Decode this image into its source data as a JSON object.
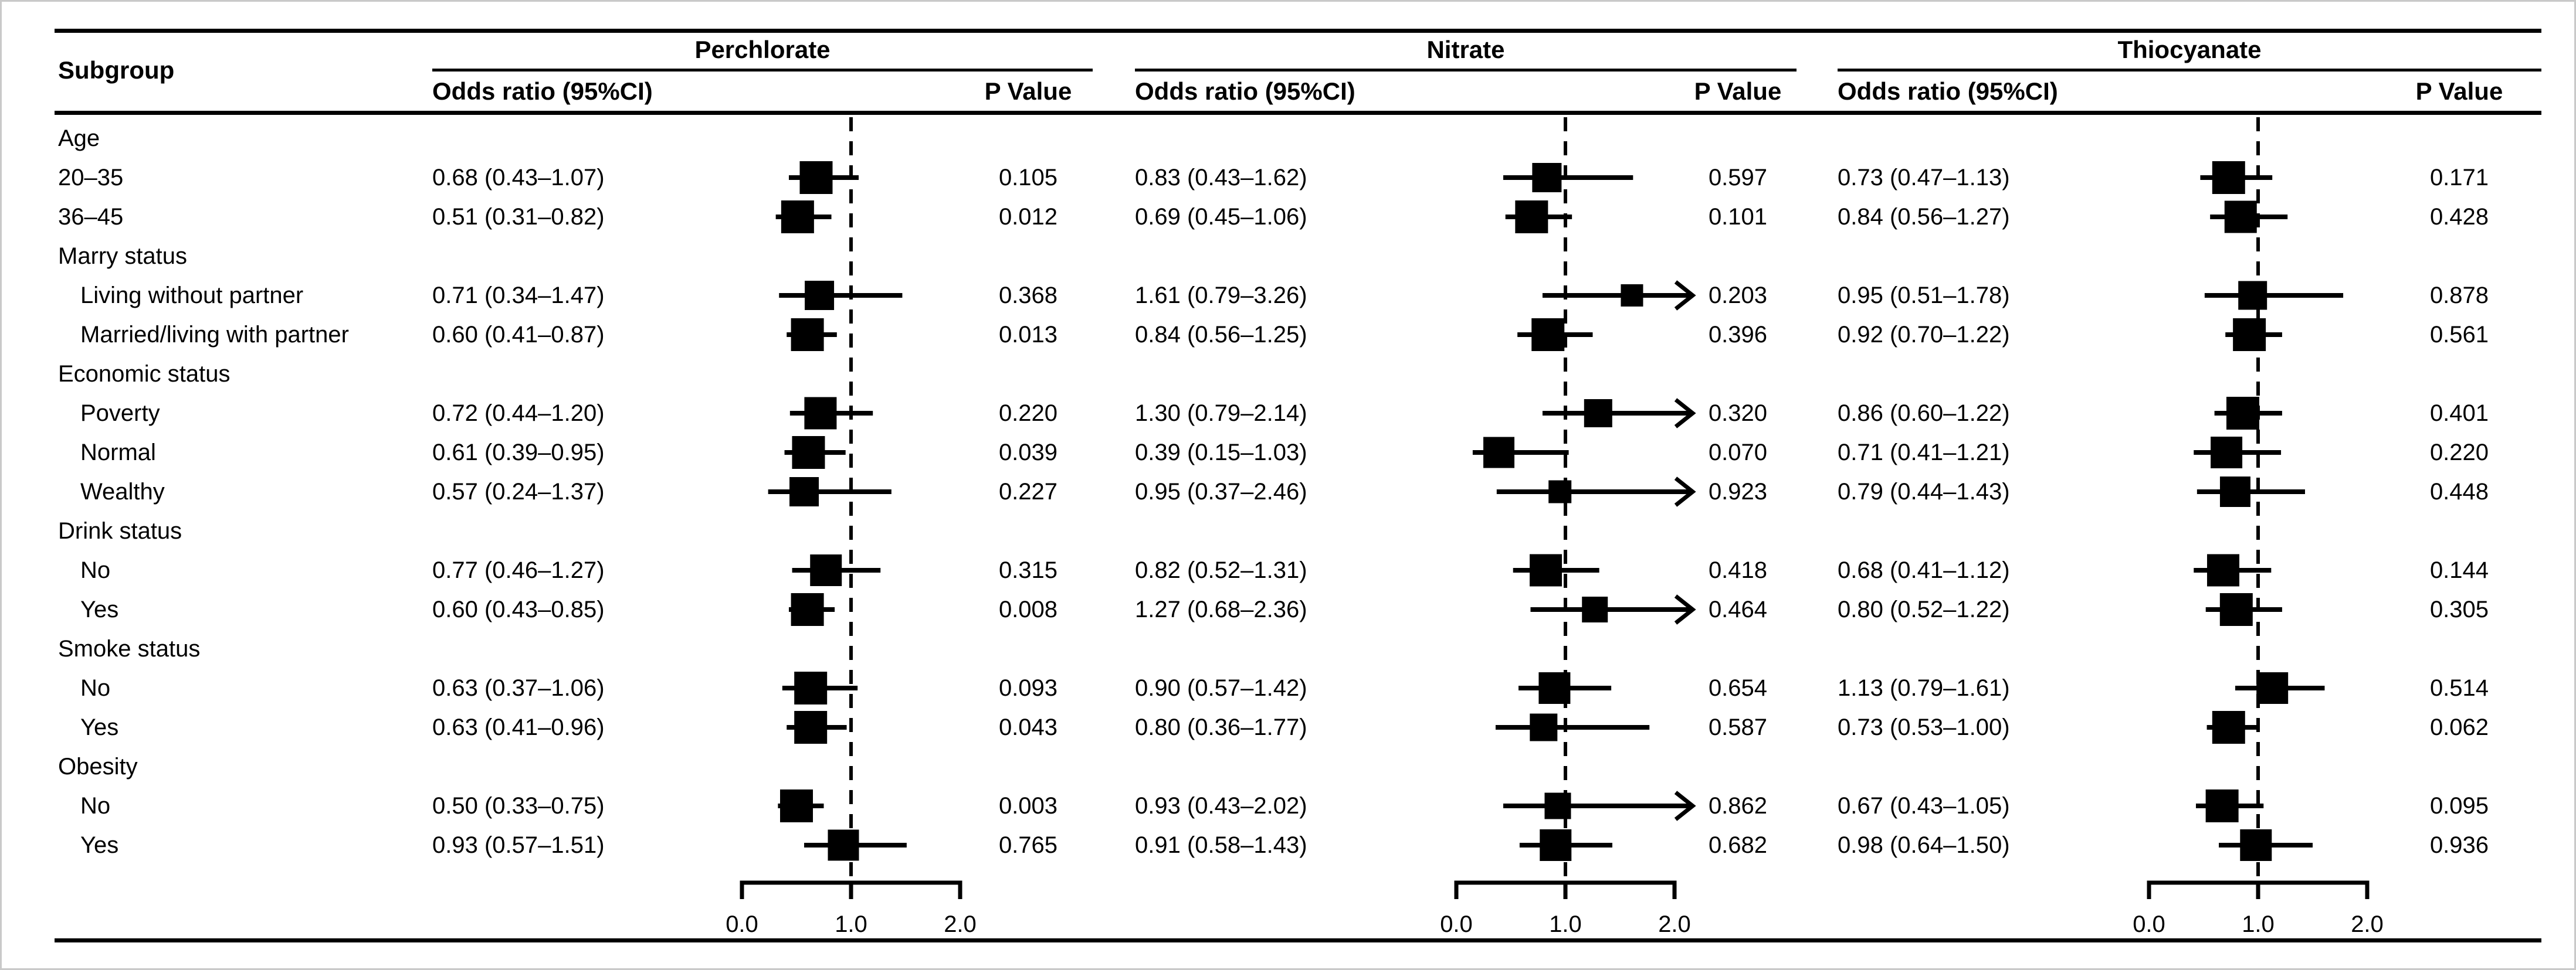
{
  "ink_color": "#000000",
  "background_color": "#ffffff",
  "border_color": "#c9c9c9",
  "chart_data": {
    "type": "forest",
    "subgroup_header": "Subgroup",
    "axis": {
      "min": 0,
      "max": 2,
      "refline": 1,
      "refline_style": "dashed",
      "ticks": [
        {
          "value": 0,
          "label": "0.0"
        },
        {
          "value": 1,
          "label": "1.0"
        },
        {
          "value": 2,
          "label": "2.0"
        }
      ]
    },
    "panels": [
      {
        "name": "Perchlorate",
        "or_header": "Odds ratio (95%CI)",
        "p_header": "P Value"
      },
      {
        "name": "Nitrate",
        "or_header": "Odds ratio (95%CI)",
        "p_header": "P Value"
      },
      {
        "name": "Thiocyanate",
        "or_header": "Odds ratio (95%CI)",
        "p_header": "P Value"
      }
    ],
    "rows": [
      {
        "type": "category",
        "label": "Age",
        "indent": false
      },
      {
        "type": "item",
        "label": "20–35",
        "indent": false,
        "cells": [
          {
            "or_text": "0.68 (0.43–1.07)",
            "or": 0.68,
            "lo": 0.43,
            "hi": 1.07,
            "p": "0.105"
          },
          {
            "or_text": "0.83 (0.43–1.62)",
            "or": 0.83,
            "lo": 0.43,
            "hi": 1.62,
            "p": "0.597"
          },
          {
            "or_text": "0.73 (0.47–1.13)",
            "or": 0.73,
            "lo": 0.47,
            "hi": 1.13,
            "p": "0.171"
          }
        ]
      },
      {
        "type": "item",
        "label": "36–45",
        "indent": false,
        "cells": [
          {
            "or_text": "0.51 (0.31–0.82)",
            "or": 0.51,
            "lo": 0.31,
            "hi": 0.82,
            "p": "0.012"
          },
          {
            "or_text": "0.69 (0.45–1.06)",
            "or": 0.69,
            "lo": 0.45,
            "hi": 1.06,
            "p": "0.101"
          },
          {
            "or_text": "0.84 (0.56–1.27)",
            "or": 0.84,
            "lo": 0.56,
            "hi": 1.27,
            "p": "0.428"
          }
        ]
      },
      {
        "type": "category",
        "label": "Marry status",
        "indent": false
      },
      {
        "type": "item",
        "label": "Living without partner",
        "indent": true,
        "cells": [
          {
            "or_text": "0.71 (0.34–1.47)",
            "or": 0.71,
            "lo": 0.34,
            "hi": 1.47,
            "p": "0.368"
          },
          {
            "or_text": "1.61 (0.79–3.26)",
            "or": 1.61,
            "lo": 0.79,
            "hi": 3.26,
            "p": "0.203"
          },
          {
            "or_text": "0.95 (0.51–1.78)",
            "or": 0.95,
            "lo": 0.51,
            "hi": 1.78,
            "p": "0.878"
          }
        ]
      },
      {
        "type": "item",
        "label": "Married/living with partner",
        "indent": true,
        "cells": [
          {
            "or_text": "0.60 (0.41–0.87)",
            "or": 0.6,
            "lo": 0.41,
            "hi": 0.87,
            "p": "0.013"
          },
          {
            "or_text": "0.84 (0.56–1.25)",
            "or": 0.84,
            "lo": 0.56,
            "hi": 1.25,
            "p": "0.396"
          },
          {
            "or_text": "0.92 (0.70–1.22)",
            "or": 0.92,
            "lo": 0.7,
            "hi": 1.22,
            "p": "0.561"
          }
        ]
      },
      {
        "type": "category",
        "label": "Economic status",
        "indent": false
      },
      {
        "type": "item",
        "label": "Poverty",
        "indent": true,
        "cells": [
          {
            "or_text": "0.72 (0.44–1.20)",
            "or": 0.72,
            "lo": 0.44,
            "hi": 1.2,
            "p": "0.220"
          },
          {
            "or_text": "1.30 (0.79–2.14)",
            "or": 1.3,
            "lo": 0.79,
            "hi": 2.14,
            "p": "0.320"
          },
          {
            "or_text": "0.86 (0.60–1.22)",
            "or": 0.86,
            "lo": 0.6,
            "hi": 1.22,
            "p": "0.401"
          }
        ]
      },
      {
        "type": "item",
        "label": "Normal",
        "indent": true,
        "cells": [
          {
            "or_text": "0.61 (0.39–0.95)",
            "or": 0.61,
            "lo": 0.39,
            "hi": 0.95,
            "p": "0.039"
          },
          {
            "or_text": "0.39 (0.15–1.03)",
            "or": 0.39,
            "lo": 0.15,
            "hi": 1.03,
            "p": "0.070"
          },
          {
            "or_text": "0.71 (0.41–1.21)",
            "or": 0.71,
            "lo": 0.41,
            "hi": 1.21,
            "p": "0.220"
          }
        ]
      },
      {
        "type": "item",
        "label": "Wealthy",
        "indent": true,
        "cells": [
          {
            "or_text": "0.57 (0.24–1.37)",
            "or": 0.57,
            "lo": 0.24,
            "hi": 1.37,
            "p": "0.227"
          },
          {
            "or_text": "0.95 (0.37–2.46)",
            "or": 0.95,
            "lo": 0.37,
            "hi": 2.46,
            "p": "0.923"
          },
          {
            "or_text": "0.79 (0.44–1.43)",
            "or": 0.79,
            "lo": 0.44,
            "hi": 1.43,
            "p": "0.448"
          }
        ]
      },
      {
        "type": "category",
        "label": "Drink status",
        "indent": false
      },
      {
        "type": "item",
        "label": "No",
        "indent": true,
        "cells": [
          {
            "or_text": "0.77 (0.46–1.27)",
            "or": 0.77,
            "lo": 0.46,
            "hi": 1.27,
            "p": "0.315"
          },
          {
            "or_text": "0.82 (0.52–1.31)",
            "or": 0.82,
            "lo": 0.52,
            "hi": 1.31,
            "p": "0.418"
          },
          {
            "or_text": "0.68 (0.41–1.12)",
            "or": 0.68,
            "lo": 0.41,
            "hi": 1.12,
            "p": "0.144"
          }
        ]
      },
      {
        "type": "item",
        "label": "Yes",
        "indent": true,
        "cells": [
          {
            "or_text": "0.60 (0.43–0.85)",
            "or": 0.6,
            "lo": 0.43,
            "hi": 0.85,
            "p": "0.008"
          },
          {
            "or_text": "1.27 (0.68–2.36)",
            "or": 1.27,
            "lo": 0.68,
            "hi": 2.36,
            "p": "0.464"
          },
          {
            "or_text": "0.80 (0.52–1.22)",
            "or": 0.8,
            "lo": 0.52,
            "hi": 1.22,
            "p": "0.305"
          }
        ]
      },
      {
        "type": "category",
        "label": "Smoke status",
        "indent": false
      },
      {
        "type": "item",
        "label": "No",
        "indent": true,
        "cells": [
          {
            "or_text": "0.63 (0.37–1.06)",
            "or": 0.63,
            "lo": 0.37,
            "hi": 1.06,
            "p": "0.093"
          },
          {
            "or_text": "0.90 (0.57–1.42)",
            "or": 0.9,
            "lo": 0.57,
            "hi": 1.42,
            "p": "0.654"
          },
          {
            "or_text": "1.13 (0.79–1.61)",
            "or": 1.13,
            "lo": 0.79,
            "hi": 1.61,
            "p": "0.514"
          }
        ]
      },
      {
        "type": "item",
        "label": "Yes",
        "indent": true,
        "cells": [
          {
            "or_text": "0.63 (0.41–0.96)",
            "or": 0.63,
            "lo": 0.41,
            "hi": 0.96,
            "p": "0.043"
          },
          {
            "or_text": "0.80 (0.36–1.77)",
            "or": 0.8,
            "lo": 0.36,
            "hi": 1.77,
            "p": "0.587"
          },
          {
            "or_text": "0.73 (0.53–1.00)",
            "or": 0.73,
            "lo": 0.53,
            "hi": 1.0,
            "p": "0.062"
          }
        ]
      },
      {
        "type": "category",
        "label": "Obesity",
        "indent": false
      },
      {
        "type": "item",
        "label": "No",
        "indent": true,
        "cells": [
          {
            "or_text": "0.50 (0.33–0.75)",
            "or": 0.5,
            "lo": 0.33,
            "hi": 0.75,
            "p": "0.003"
          },
          {
            "or_text": "0.93 (0.43–2.02)",
            "or": 0.93,
            "lo": 0.43,
            "hi": 2.02,
            "p": "0.862"
          },
          {
            "or_text": "0.67 (0.43–1.05)",
            "or": 0.67,
            "lo": 0.43,
            "hi": 1.05,
            "p": "0.095"
          }
        ]
      },
      {
        "type": "item",
        "label": "Yes",
        "indent": true,
        "cells": [
          {
            "or_text": "0.93 (0.57–1.51)",
            "or": 0.93,
            "lo": 0.57,
            "hi": 1.51,
            "p": "0.765"
          },
          {
            "or_text": "0.91 (0.58–1.43)",
            "or": 0.91,
            "lo": 0.58,
            "hi": 1.43,
            "p": "0.682"
          },
          {
            "or_text": "0.98 (0.64–1.50)",
            "or": 0.98,
            "lo": 0.64,
            "hi": 1.5,
            "p": "0.936"
          }
        ]
      }
    ]
  }
}
